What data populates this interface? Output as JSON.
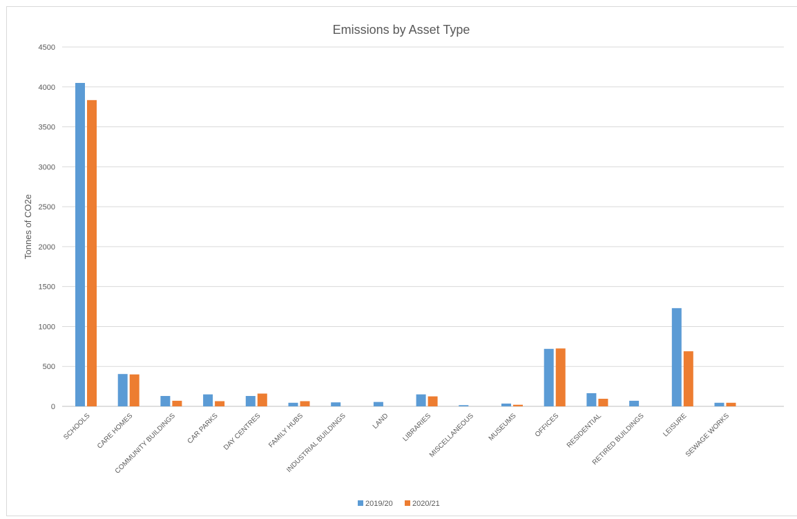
{
  "chart_data": {
    "type": "bar",
    "title": "Emissions by Asset Type",
    "xlabel": "",
    "ylabel": "Tonnes of CO2e",
    "ylim": [
      0,
      4500
    ],
    "yticks": [
      0,
      500,
      1000,
      1500,
      2000,
      2500,
      3000,
      3500,
      4000,
      4500
    ],
    "grid": true,
    "legend_position": "bottom",
    "categories": [
      "SCHOOLS",
      "CARE HOMES",
      "COMMUNITY BUILDINGS",
      "CAR PARKS",
      "DAY CENTRES",
      "FAMILY HUBS",
      "INDUSTRIAL BUILDINGS",
      "LAND",
      "LIBRARIES",
      "MISCELLANEOUS",
      "MUSEUMS",
      "OFFICES",
      "RESIDENTIAL",
      "RETIRED BUILDINGS",
      "LEISURE",
      "SEWAGE WORKS"
    ],
    "series": [
      {
        "name": "2019/20",
        "color": "#5b9bd5",
        "values": [
          4050,
          405,
          130,
          150,
          130,
          45,
          50,
          55,
          150,
          15,
          35,
          720,
          165,
          70,
          1230,
          45
        ]
      },
      {
        "name": "2020/21",
        "color": "#ed7d31",
        "values": [
          3835,
          400,
          70,
          65,
          160,
          65,
          0,
          0,
          125,
          0,
          20,
          725,
          95,
          0,
          690,
          45
        ]
      }
    ]
  }
}
